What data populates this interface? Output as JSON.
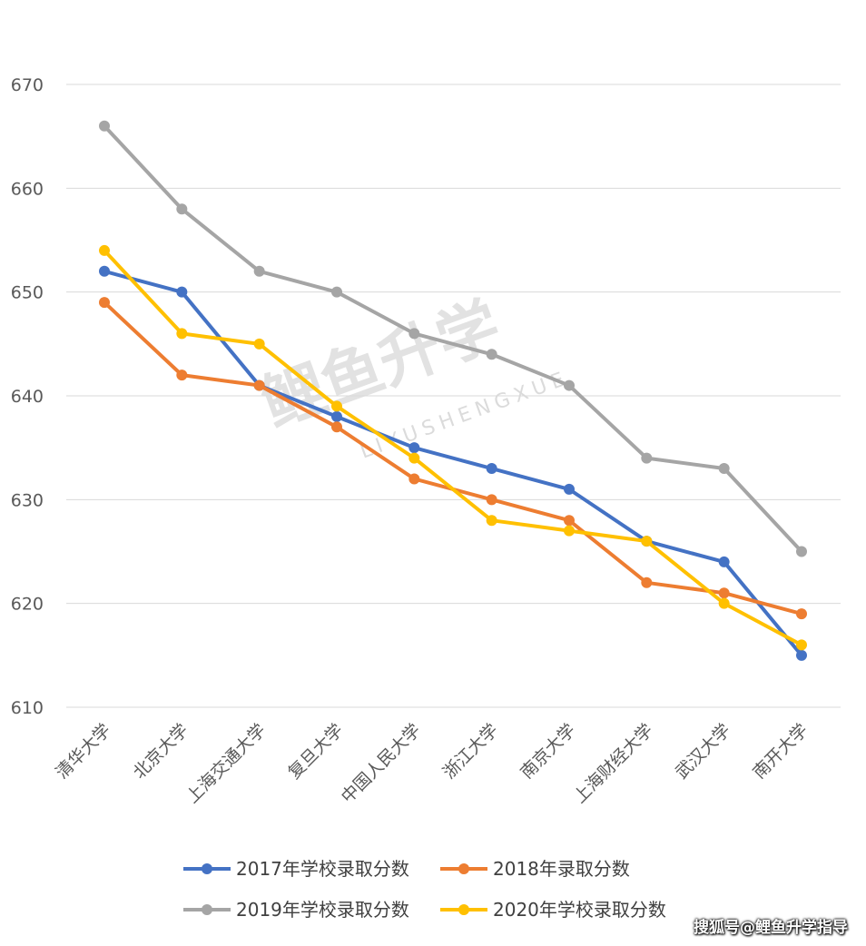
{
  "chart_data": {
    "type": "line",
    "categories": [
      "清华大学",
      "北京大学",
      "上海交通大学",
      "复旦大学",
      "中国人民大学",
      "浙江大学",
      "南京大学",
      "上海财经大学",
      "武汉大学",
      "南开大学"
    ],
    "series": [
      {
        "name": "2017年学校录取分数",
        "color": "#4472C4",
        "values": [
          652,
          650,
          641,
          638,
          635,
          633,
          631,
          626,
          624,
          615
        ]
      },
      {
        "name": "2018年录取分数",
        "color": "#ED7D31",
        "values": [
          649,
          642,
          641,
          637,
          632,
          630,
          628,
          622,
          621,
          619
        ]
      },
      {
        "name": "2019年学校录取分数",
        "color": "#A5A5A5",
        "values": [
          666,
          658,
          652,
          650,
          646,
          644,
          641,
          634,
          633,
          625
        ]
      },
      {
        "name": "2020年学校录取分数",
        "color": "#FFC000",
        "values": [
          654,
          646,
          645,
          639,
          634,
          628,
          627,
          626,
          620,
          616
        ]
      }
    ],
    "ylim": [
      610,
      670
    ],
    "yticks": [
      670,
      660,
      650,
      640,
      630,
      620,
      610
    ],
    "grid": true,
    "legend_position": "bottom",
    "title": "",
    "xlabel": "",
    "ylabel": ""
  },
  "watermark": {
    "main": "鲤鱼升学",
    "sub": "LIYUSHENGXUE"
  },
  "credit": "搜狐号@鲤鱼升学指导"
}
